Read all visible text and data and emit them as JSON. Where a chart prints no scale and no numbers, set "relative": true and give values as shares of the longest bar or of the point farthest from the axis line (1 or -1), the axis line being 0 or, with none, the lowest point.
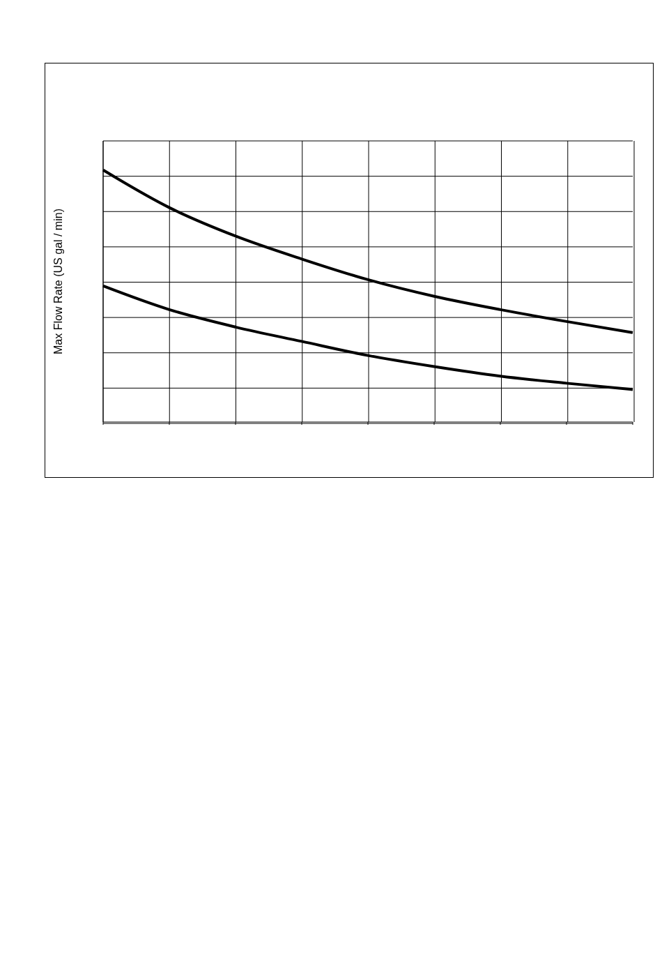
{
  "chart_data": {
    "type": "line",
    "relative": true,
    "ylabel": "Max Flow Rate (US gal / min)",
    "categories": [
      null,
      null,
      null,
      null,
      null,
      null,
      null,
      null,
      null
    ],
    "series": [
      {
        "color": "#000000",
        "values": [
          1,
          0.851,
          0.738,
          0.647,
          0.565,
          0.499,
          0.446,
          0.399,
          0.355
        ]
      },
      {
        "color": "#000000",
        "values": [
          0.54,
          0.446,
          0.377,
          0.32,
          0.264,
          0.22,
          0.182,
          0.154,
          0.129
        ]
      }
    ],
    "grid": true,
    "marker": "none",
    "line_style": "solid"
  }
}
